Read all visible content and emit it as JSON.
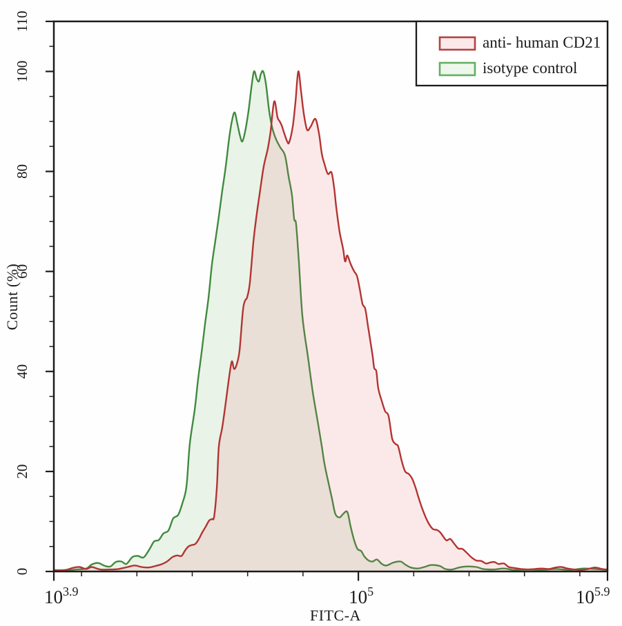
{
  "figure": {
    "background": "#ffffff",
    "frame_color": "#1b1b1b"
  },
  "chart_data": {
    "type": "area",
    "title": "",
    "xlabel": "FITC-A",
    "ylabel": "Count (%)",
    "x_scale": "log10",
    "xlim_log": [
      3.9,
      5.9
    ],
    "ylim": [
      0,
      110
    ],
    "grid": "off",
    "y_ticks_major": [
      0,
      20,
      40,
      60,
      80,
      100,
      110
    ],
    "y_tick_minor_step": 5,
    "x_ticks_major": [
      {
        "log": 3.9,
        "base": "10",
        "exponent": "3.9"
      },
      {
        "log": 5.0,
        "base": "10",
        "exponent": "5"
      },
      {
        "log": 5.9,
        "base": "10",
        "exponent": "5.9"
      }
    ],
    "x_ticks_minor_log": [
      4.0,
      4.2,
      4.4,
      4.6,
      4.8,
      5.2,
      5.4,
      5.6,
      5.8
    ],
    "legend": {
      "position": "top-right",
      "entries": [
        {
          "label": "anti- human CD21",
          "stroke": "#b5423f",
          "fill": "#fbe9ea"
        },
        {
          "label": "isotype control",
          "stroke": "#62b062",
          "fill": "#eef7ec"
        }
      ]
    },
    "series": [
      {
        "name": "anti- human CD21",
        "stroke": "#b23431",
        "fill": "rgba(229,93,103,0.13)",
        "points": [
          [
            3.9,
            0.2
          ],
          [
            3.942,
            0.3
          ],
          [
            3.967,
            0.7
          ],
          [
            3.992,
            0.9
          ],
          [
            4.017,
            0.5
          ],
          [
            4.037,
            0.9
          ],
          [
            4.067,
            0.4
          ],
          [
            4.104,
            0.4
          ],
          [
            4.134,
            0.5
          ],
          [
            4.167,
            0.9
          ],
          [
            4.192,
            1.2
          ],
          [
            4.217,
            0.9
          ],
          [
            4.242,
            0.8
          ],
          [
            4.267,
            1.1
          ],
          [
            4.287,
            1.4
          ],
          [
            4.309,
            2.0
          ],
          [
            4.329,
            2.9
          ],
          [
            4.346,
            3.2
          ],
          [
            4.361,
            3.1
          ],
          [
            4.374,
            4.2
          ],
          [
            4.386,
            5.0
          ],
          [
            4.399,
            5.3
          ],
          [
            4.411,
            5.5
          ],
          [
            4.424,
            6.5
          ],
          [
            4.436,
            7.8
          ],
          [
            4.449,
            9.0
          ],
          [
            4.461,
            10.2
          ],
          [
            4.471,
            10.5
          ],
          [
            4.479,
            11.0
          ],
          [
            4.489,
            17.0
          ],
          [
            4.496,
            25.0
          ],
          [
            4.508,
            28.7
          ],
          [
            4.521,
            33.8
          ],
          [
            4.533,
            38.8
          ],
          [
            4.543,
            42.0
          ],
          [
            4.551,
            40.5
          ],
          [
            4.561,
            41.5
          ],
          [
            4.571,
            44.3
          ],
          [
            4.583,
            52.2
          ],
          [
            4.591,
            54.2
          ],
          [
            4.598,
            54.8
          ],
          [
            4.608,
            57.7
          ],
          [
            4.621,
            66.0
          ],
          [
            4.633,
            71.5
          ],
          [
            4.646,
            76.5
          ],
          [
            4.658,
            81.0
          ],
          [
            4.673,
            84.6
          ],
          [
            4.683,
            88.0
          ],
          [
            4.696,
            94.0
          ],
          [
            4.708,
            90.8
          ],
          [
            4.715,
            90.1
          ],
          [
            4.723,
            89.2
          ],
          [
            4.733,
            87.5
          ],
          [
            4.743,
            86.0
          ],
          [
            4.75,
            85.8
          ],
          [
            4.763,
            89.0
          ],
          [
            4.773,
            94.0
          ],
          [
            4.783,
            100.0
          ],
          [
            4.793,
            96.0
          ],
          [
            4.803,
            91.5
          ],
          [
            4.815,
            88.3
          ],
          [
            4.828,
            89.0
          ],
          [
            4.845,
            90.5
          ],
          [
            4.858,
            87.5
          ],
          [
            4.868,
            83.5
          ],
          [
            4.878,
            81.4
          ],
          [
            4.89,
            79.5
          ],
          [
            4.903,
            79.8
          ],
          [
            4.913,
            76.5
          ],
          [
            4.92,
            72.9
          ],
          [
            4.932,
            68.0
          ],
          [
            4.945,
            64.5
          ],
          [
            4.952,
            62.0
          ],
          [
            4.96,
            63.2
          ],
          [
            4.972,
            61.5
          ],
          [
            4.985,
            60.0
          ],
          [
            4.995,
            59.1
          ],
          [
            5.005,
            56.5
          ],
          [
            5.015,
            53.5
          ],
          [
            5.025,
            52.5
          ],
          [
            5.035,
            49.0
          ],
          [
            5.045,
            45.5
          ],
          [
            5.052,
            42.9
          ],
          [
            5.057,
            40.7
          ],
          [
            5.065,
            40.0
          ],
          [
            5.072,
            36.6
          ],
          [
            5.085,
            34.0
          ],
          [
            5.097,
            32.0
          ],
          [
            5.109,
            31.1
          ],
          [
            5.122,
            26.6
          ],
          [
            5.134,
            25.5
          ],
          [
            5.144,
            25.0
          ],
          [
            5.157,
            22.0
          ],
          [
            5.169,
            20.0
          ],
          [
            5.182,
            19.5
          ],
          [
            5.194,
            18.6
          ],
          [
            5.207,
            16.7
          ],
          [
            5.219,
            14.5
          ],
          [
            5.234,
            12.1
          ],
          [
            5.252,
            9.8
          ],
          [
            5.269,
            8.5
          ],
          [
            5.284,
            8.3
          ],
          [
            5.296,
            7.8
          ],
          [
            5.309,
            6.8
          ],
          [
            5.319,
            6.2
          ],
          [
            5.332,
            6.5
          ],
          [
            5.347,
            5.5
          ],
          [
            5.361,
            4.6
          ],
          [
            5.376,
            4.5
          ],
          [
            5.394,
            3.6
          ],
          [
            5.409,
            2.8
          ],
          [
            5.426,
            2.2
          ],
          [
            5.444,
            2.1
          ],
          [
            5.461,
            1.6
          ],
          [
            5.476,
            1.8
          ],
          [
            5.491,
            1.9
          ],
          [
            5.506,
            1.5
          ],
          [
            5.526,
            1.6
          ],
          [
            5.543,
            0.9
          ],
          [
            5.563,
            0.7
          ],
          [
            5.588,
            0.5
          ],
          [
            5.613,
            0.4
          ],
          [
            5.638,
            0.5
          ],
          [
            5.663,
            0.6
          ],
          [
            5.688,
            0.5
          ],
          [
            5.713,
            0.8
          ],
          [
            5.733,
            0.9
          ],
          [
            5.755,
            0.6
          ],
          [
            5.78,
            0.4
          ],
          [
            5.805,
            0.3
          ],
          [
            5.83,
            0.5
          ],
          [
            5.855,
            0.8
          ],
          [
            5.88,
            0.5
          ],
          [
            5.9,
            0.4
          ]
        ]
      },
      {
        "name": "isotype control",
        "stroke": "#3f8a3f",
        "fill": "rgba(110,175,100,0.14)",
        "points": [
          [
            3.9,
            0.3
          ],
          [
            3.942,
            0.2
          ],
          [
            3.98,
            0.4
          ],
          [
            4.017,
            0.6
          ],
          [
            4.037,
            1.4
          ],
          [
            4.06,
            1.7
          ],
          [
            4.085,
            1.1
          ],
          [
            4.104,
            1.0
          ],
          [
            4.124,
            1.9
          ],
          [
            4.144,
            2.0
          ],
          [
            4.162,
            1.5
          ],
          [
            4.184,
            2.9
          ],
          [
            4.204,
            3.1
          ],
          [
            4.224,
            2.8
          ],
          [
            4.244,
            4.3
          ],
          [
            4.262,
            6.0
          ],
          [
            4.279,
            6.3
          ],
          [
            4.296,
            7.6
          ],
          [
            4.314,
            8.2
          ],
          [
            4.331,
            10.6
          ],
          [
            4.349,
            11.3
          ],
          [
            4.364,
            13.6
          ],
          [
            4.379,
            17.0
          ],
          [
            4.391,
            25.5
          ],
          [
            4.409,
            32.4
          ],
          [
            4.421,
            38.4
          ],
          [
            4.434,
            43.9
          ],
          [
            4.446,
            49.4
          ],
          [
            4.459,
            54.9
          ],
          [
            4.471,
            61.4
          ],
          [
            4.483,
            66.0
          ],
          [
            4.496,
            71.0
          ],
          [
            4.508,
            76.0
          ],
          [
            4.521,
            81.0
          ],
          [
            4.533,
            86.5
          ],
          [
            4.543,
            90.0
          ],
          [
            4.553,
            91.8
          ],
          [
            4.563,
            89.5
          ],
          [
            4.573,
            87.0
          ],
          [
            4.581,
            86.0
          ],
          [
            4.591,
            88.0
          ],
          [
            4.603,
            92.0
          ],
          [
            4.613,
            96.5
          ],
          [
            4.623,
            100.0
          ],
          [
            4.633,
            98.5
          ],
          [
            4.641,
            98.0
          ],
          [
            4.648,
            99.5
          ],
          [
            4.656,
            100.0
          ],
          [
            4.666,
            97.5
          ],
          [
            4.678,
            92.0
          ],
          [
            4.69,
            88.5
          ],
          [
            4.703,
            86.4
          ],
          [
            4.718,
            84.8
          ],
          [
            4.735,
            83.2
          ],
          [
            4.748,
            79.0
          ],
          [
            4.76,
            75.3
          ],
          [
            4.768,
            70.5
          ],
          [
            4.775,
            69.5
          ],
          [
            4.785,
            62.1
          ],
          [
            4.798,
            51.0
          ],
          [
            4.818,
            42.9
          ],
          [
            4.835,
            36.0
          ],
          [
            4.853,
            30.0
          ],
          [
            4.868,
            25.0
          ],
          [
            4.878,
            21.4
          ],
          [
            4.893,
            17.5
          ],
          [
            4.905,
            14.5
          ],
          [
            4.917,
            11.5
          ],
          [
            4.932,
            10.8
          ],
          [
            4.945,
            11.5
          ],
          [
            4.96,
            11.9
          ],
          [
            4.972,
            9.0
          ],
          [
            4.985,
            6.2
          ],
          [
            4.997,
            4.5
          ],
          [
            5.01,
            4.1
          ],
          [
            5.022,
            3.0
          ],
          [
            5.037,
            2.2
          ],
          [
            5.052,
            2.0
          ],
          [
            5.067,
            2.4
          ],
          [
            5.085,
            1.5
          ],
          [
            5.102,
            1.2
          ],
          [
            5.127,
            1.8
          ],
          [
            5.152,
            2.0
          ],
          [
            5.169,
            1.4
          ],
          [
            5.189,
            0.8
          ],
          [
            5.214,
            0.6
          ],
          [
            5.239,
            0.9
          ],
          [
            5.264,
            1.3
          ],
          [
            5.294,
            1.1
          ],
          [
            5.314,
            0.5
          ],
          [
            5.339,
            0.4
          ],
          [
            5.364,
            0.8
          ],
          [
            5.389,
            1.0
          ],
          [
            5.426,
            0.9
          ],
          [
            5.451,
            0.5
          ],
          [
            5.489,
            0.4
          ],
          [
            5.526,
            0.6
          ],
          [
            5.563,
            0.3
          ],
          [
            5.613,
            0.4
          ],
          [
            5.663,
            0.3
          ],
          [
            5.713,
            0.5
          ],
          [
            5.763,
            0.3
          ],
          [
            5.813,
            0.6
          ],
          [
            5.855,
            0.5
          ],
          [
            5.9,
            0.3
          ]
        ]
      }
    ]
  }
}
